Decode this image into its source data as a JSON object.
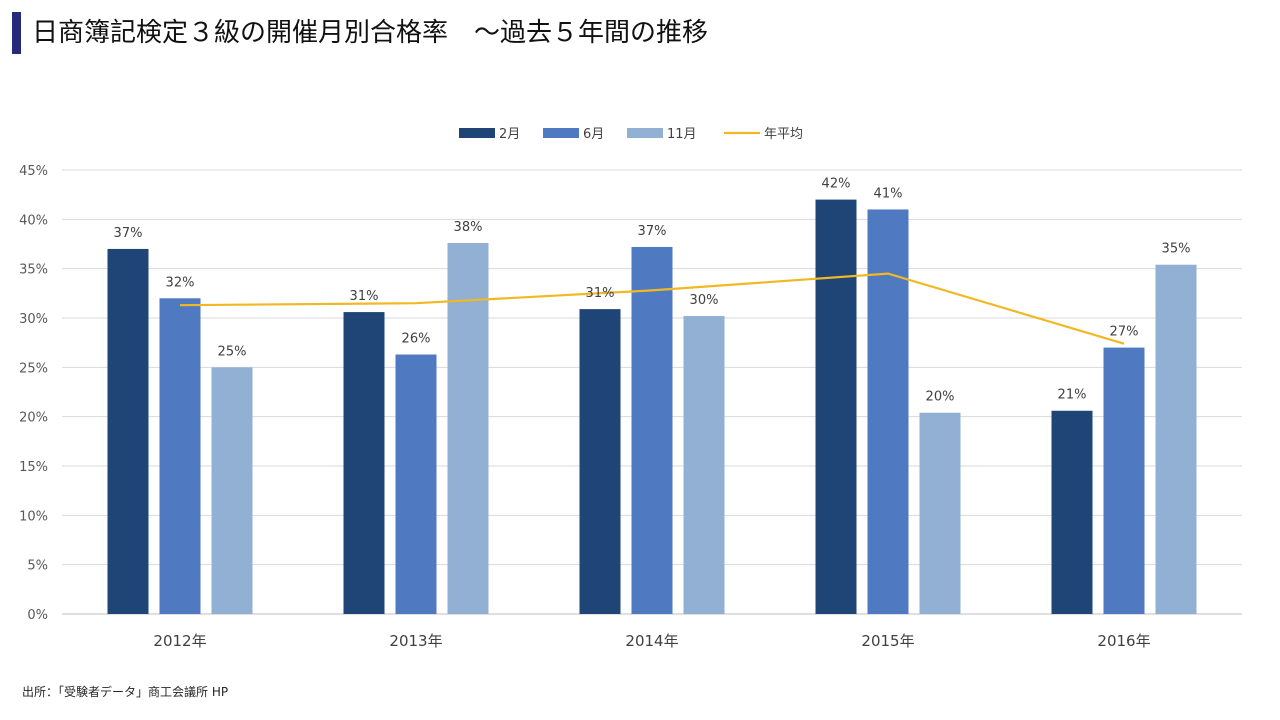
{
  "title": "日商簿記検定３級の開催月別合格率　～過去５年間の推移",
  "source": "出所：「受験者データ」商工会議所 HP",
  "colors": {
    "title_accent": "#262a7a",
    "series_feb": "#1f4576",
    "series_jun": "#4f7ac1",
    "series_nov": "#92afd4",
    "line_avg": "#f2b824",
    "gridline": "#d9d9d9"
  },
  "chart_data": {
    "type": "bar",
    "categories": [
      "2012年",
      "2013年",
      "2014年",
      "2015年",
      "2016年"
    ],
    "ylim": [
      0,
      45
    ],
    "yticks": [
      0,
      5,
      10,
      15,
      20,
      25,
      30,
      35,
      40,
      45
    ],
    "ytick_labels": [
      "0%",
      "5%",
      "10%",
      "15%",
      "20%",
      "25%",
      "30%",
      "35%",
      "40%",
      "45%"
    ],
    "grid": true,
    "legend_position": "top",
    "series": [
      {
        "name": "2月",
        "type": "bar",
        "color": "#1f4576",
        "values": [
          37.0,
          30.6,
          30.9,
          42.0,
          20.6
        ],
        "labels": [
          "37%",
          "31%",
          "31%",
          "42%",
          "21%"
        ]
      },
      {
        "name": "6月",
        "type": "bar",
        "color": "#4f7ac1",
        "values": [
          32.0,
          26.3,
          37.2,
          41.0,
          27.0
        ],
        "labels": [
          "32%",
          "26%",
          "37%",
          "41%",
          "27%"
        ]
      },
      {
        "name": "11月",
        "type": "bar",
        "color": "#92afd4",
        "values": [
          25.0,
          37.6,
          30.2,
          20.4,
          35.4
        ],
        "labels": [
          "25%",
          "38%",
          "30%",
          "20%",
          "35%"
        ]
      },
      {
        "name": "年平均",
        "type": "line",
        "color": "#f2b824",
        "values": [
          31.3,
          31.5,
          32.8,
          34.5,
          27.4
        ]
      }
    ]
  }
}
